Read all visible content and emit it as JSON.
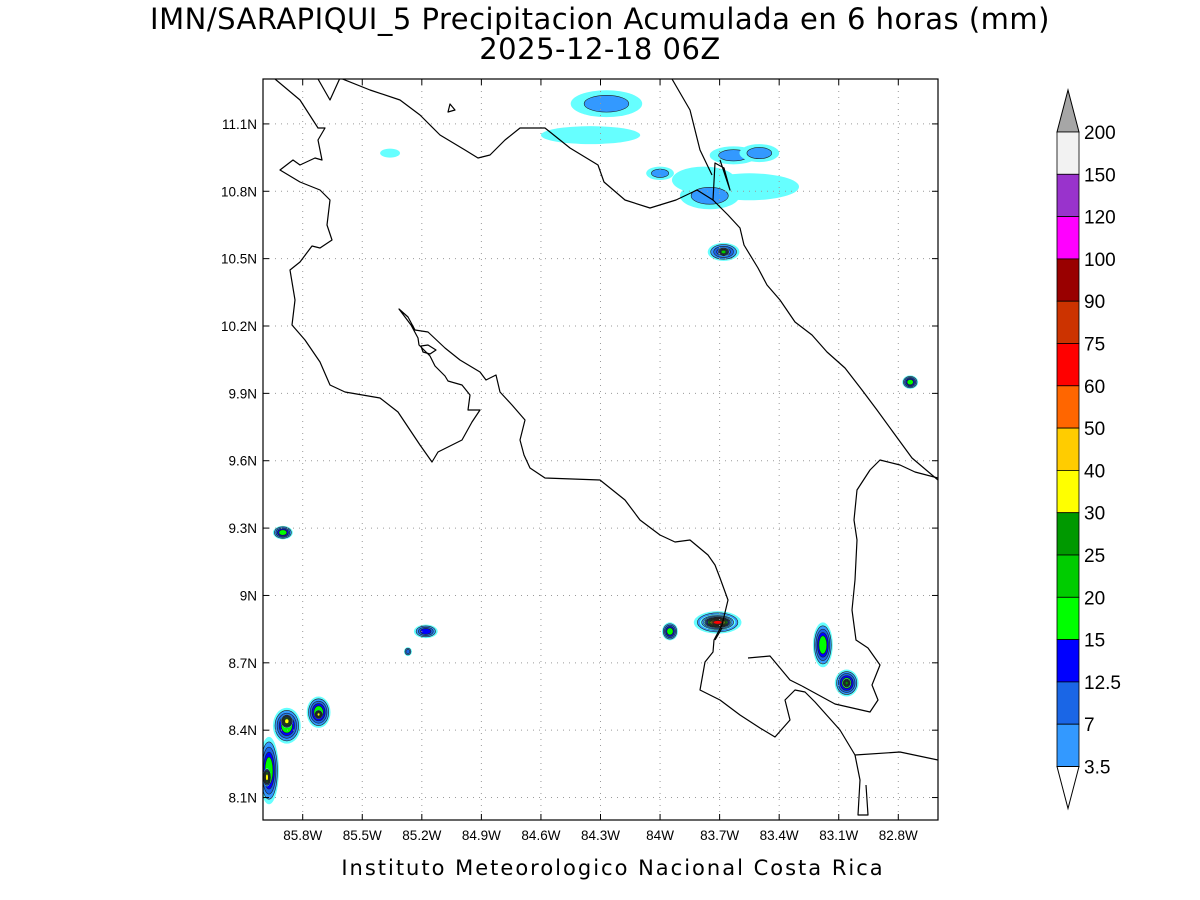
{
  "title": {
    "line1": "IMN/SARAPIQUI_5 Precipitacion Acumulada en 6 horas (mm)",
    "line2": "2025-12-18 06Z"
  },
  "credit": "Instituto Meteorologico Nacional Costa Rica",
  "map": {
    "lon_range": [
      -86.0,
      -82.6
    ],
    "lat_range": [
      8.0,
      11.3
    ],
    "lon_ticks": [
      {
        "value": -85.8,
        "label": "85.8W"
      },
      {
        "value": -85.5,
        "label": "85.5W"
      },
      {
        "value": -85.2,
        "label": "85.2W"
      },
      {
        "value": -84.9,
        "label": "84.9W"
      },
      {
        "value": -84.6,
        "label": "84.6W"
      },
      {
        "value": -84.3,
        "label": "84.3W"
      },
      {
        "value": -84.0,
        "label": "84W"
      },
      {
        "value": -83.7,
        "label": "83.7W"
      },
      {
        "value": -83.4,
        "label": "83.4W"
      },
      {
        "value": -83.1,
        "label": "83.1W"
      },
      {
        "value": -82.8,
        "label": "82.8W"
      }
    ],
    "lat_ticks": [
      {
        "value": 8.1,
        "label": "8.1N"
      },
      {
        "value": 8.4,
        "label": "8.4N"
      },
      {
        "value": 8.7,
        "label": "8.7N"
      },
      {
        "value": 9.0,
        "label": "9N"
      },
      {
        "value": 9.3,
        "label": "9.3N"
      },
      {
        "value": 9.6,
        "label": "9.6N"
      },
      {
        "value": 9.9,
        "label": "9.9N"
      },
      {
        "value": 10.2,
        "label": "10.2N"
      },
      {
        "value": 10.5,
        "label": "10.5N"
      },
      {
        "value": 10.8,
        "label": "10.8N"
      },
      {
        "value": 11.1,
        "label": "11.1N"
      }
    ],
    "grid": true,
    "boundary_color": "#000000"
  },
  "colorbar": {
    "levels": [
      "3.5",
      "7",
      "12.5",
      "15",
      "20",
      "25",
      "30",
      "40",
      "50",
      "60",
      "75",
      "90",
      "100",
      "120",
      "150",
      "200"
    ],
    "colors": [
      "#66ffff",
      "#3399ff",
      "#1a66e6",
      "#0000ff",
      "#00ff00",
      "#00cc00",
      "#009900",
      "#ffff00",
      "#ffcc00",
      "#ff6600",
      "#ff0000",
      "#cc3300",
      "#990000",
      "#ff00ff",
      "#9933cc",
      "#f2f2f2",
      "#a6a6a6"
    ]
  },
  "precipitation_cells": [
    {
      "lon": -85.36,
      "lat": 10.97,
      "rx": 0.05,
      "ry": 0.02,
      "value": 3.5
    },
    {
      "lon": -84.27,
      "lat": 11.19,
      "rx": 0.18,
      "ry": 0.06,
      "value": 7
    },
    {
      "lon": -84.35,
      "lat": 11.05,
      "rx": 0.25,
      "ry": 0.04,
      "value": 3.5
    },
    {
      "lon": -83.78,
      "lat": 10.85,
      "rx": 0.16,
      "ry": 0.06,
      "value": 3.5
    },
    {
      "lon": -83.55,
      "lat": 10.82,
      "rx": 0.25,
      "ry": 0.06,
      "value": 3.5
    },
    {
      "lon": -83.75,
      "lat": 10.78,
      "rx": 0.15,
      "ry": 0.06,
      "value": 7
    },
    {
      "lon": -83.63,
      "lat": 10.96,
      "rx": 0.12,
      "ry": 0.04,
      "value": 7
    },
    {
      "lon": -83.5,
      "lat": 10.97,
      "rx": 0.1,
      "ry": 0.04,
      "value": 7
    },
    {
      "lon": -84.0,
      "lat": 10.88,
      "rx": 0.07,
      "ry": 0.03,
      "value": 7
    },
    {
      "lon": -83.68,
      "lat": 10.53,
      "rx": 0.08,
      "ry": 0.04,
      "value": 15
    },
    {
      "lon": -83.68,
      "lat": 10.53,
      "rx": 0.03,
      "ry": 0.02,
      "value": 25
    },
    {
      "lon": -82.74,
      "lat": 9.95,
      "rx": 0.04,
      "ry": 0.03,
      "value": 20
    },
    {
      "lon": -85.9,
      "lat": 9.28,
      "rx": 0.05,
      "ry": 0.03,
      "value": 20
    },
    {
      "lon": -85.18,
      "lat": 8.84,
      "rx": 0.06,
      "ry": 0.03,
      "value": 15
    },
    {
      "lon": -85.27,
      "lat": 8.75,
      "rx": 0.02,
      "ry": 0.02,
      "value": 12.5
    },
    {
      "lon": -83.71,
      "lat": 8.88,
      "rx": 0.12,
      "ry": 0.05,
      "value": 20
    },
    {
      "lon": -83.71,
      "lat": 8.88,
      "rx": 0.09,
      "ry": 0.035,
      "value": 30
    },
    {
      "lon": -83.71,
      "lat": 8.88,
      "rx": 0.07,
      "ry": 0.025,
      "value": 75
    },
    {
      "lon": -83.95,
      "lat": 8.84,
      "rx": 0.04,
      "ry": 0.04,
      "value": 20
    },
    {
      "lon": -83.18,
      "lat": 8.78,
      "rx": 0.05,
      "ry": 0.1,
      "value": 20
    },
    {
      "lon": -83.06,
      "lat": 8.61,
      "rx": 0.06,
      "ry": 0.06,
      "value": 20
    },
    {
      "lon": -83.06,
      "lat": 8.61,
      "rx": 0.02,
      "ry": 0.02,
      "value": 30
    },
    {
      "lon": -85.88,
      "lat": 8.42,
      "rx": 0.07,
      "ry": 0.08,
      "value": 20
    },
    {
      "lon": -85.88,
      "lat": 8.44,
      "rx": 0.03,
      "ry": 0.03,
      "value": 40
    },
    {
      "lon": -85.72,
      "lat": 8.48,
      "rx": 0.06,
      "ry": 0.07,
      "value": 20
    },
    {
      "lon": -85.72,
      "lat": 8.47,
      "rx": 0.02,
      "ry": 0.02,
      "value": 40
    },
    {
      "lon": -85.97,
      "lat": 8.22,
      "rx": 0.05,
      "ry": 0.15,
      "value": 20
    },
    {
      "lon": -85.98,
      "lat": 8.19,
      "rx": 0.02,
      "ry": 0.04,
      "value": 40
    }
  ]
}
